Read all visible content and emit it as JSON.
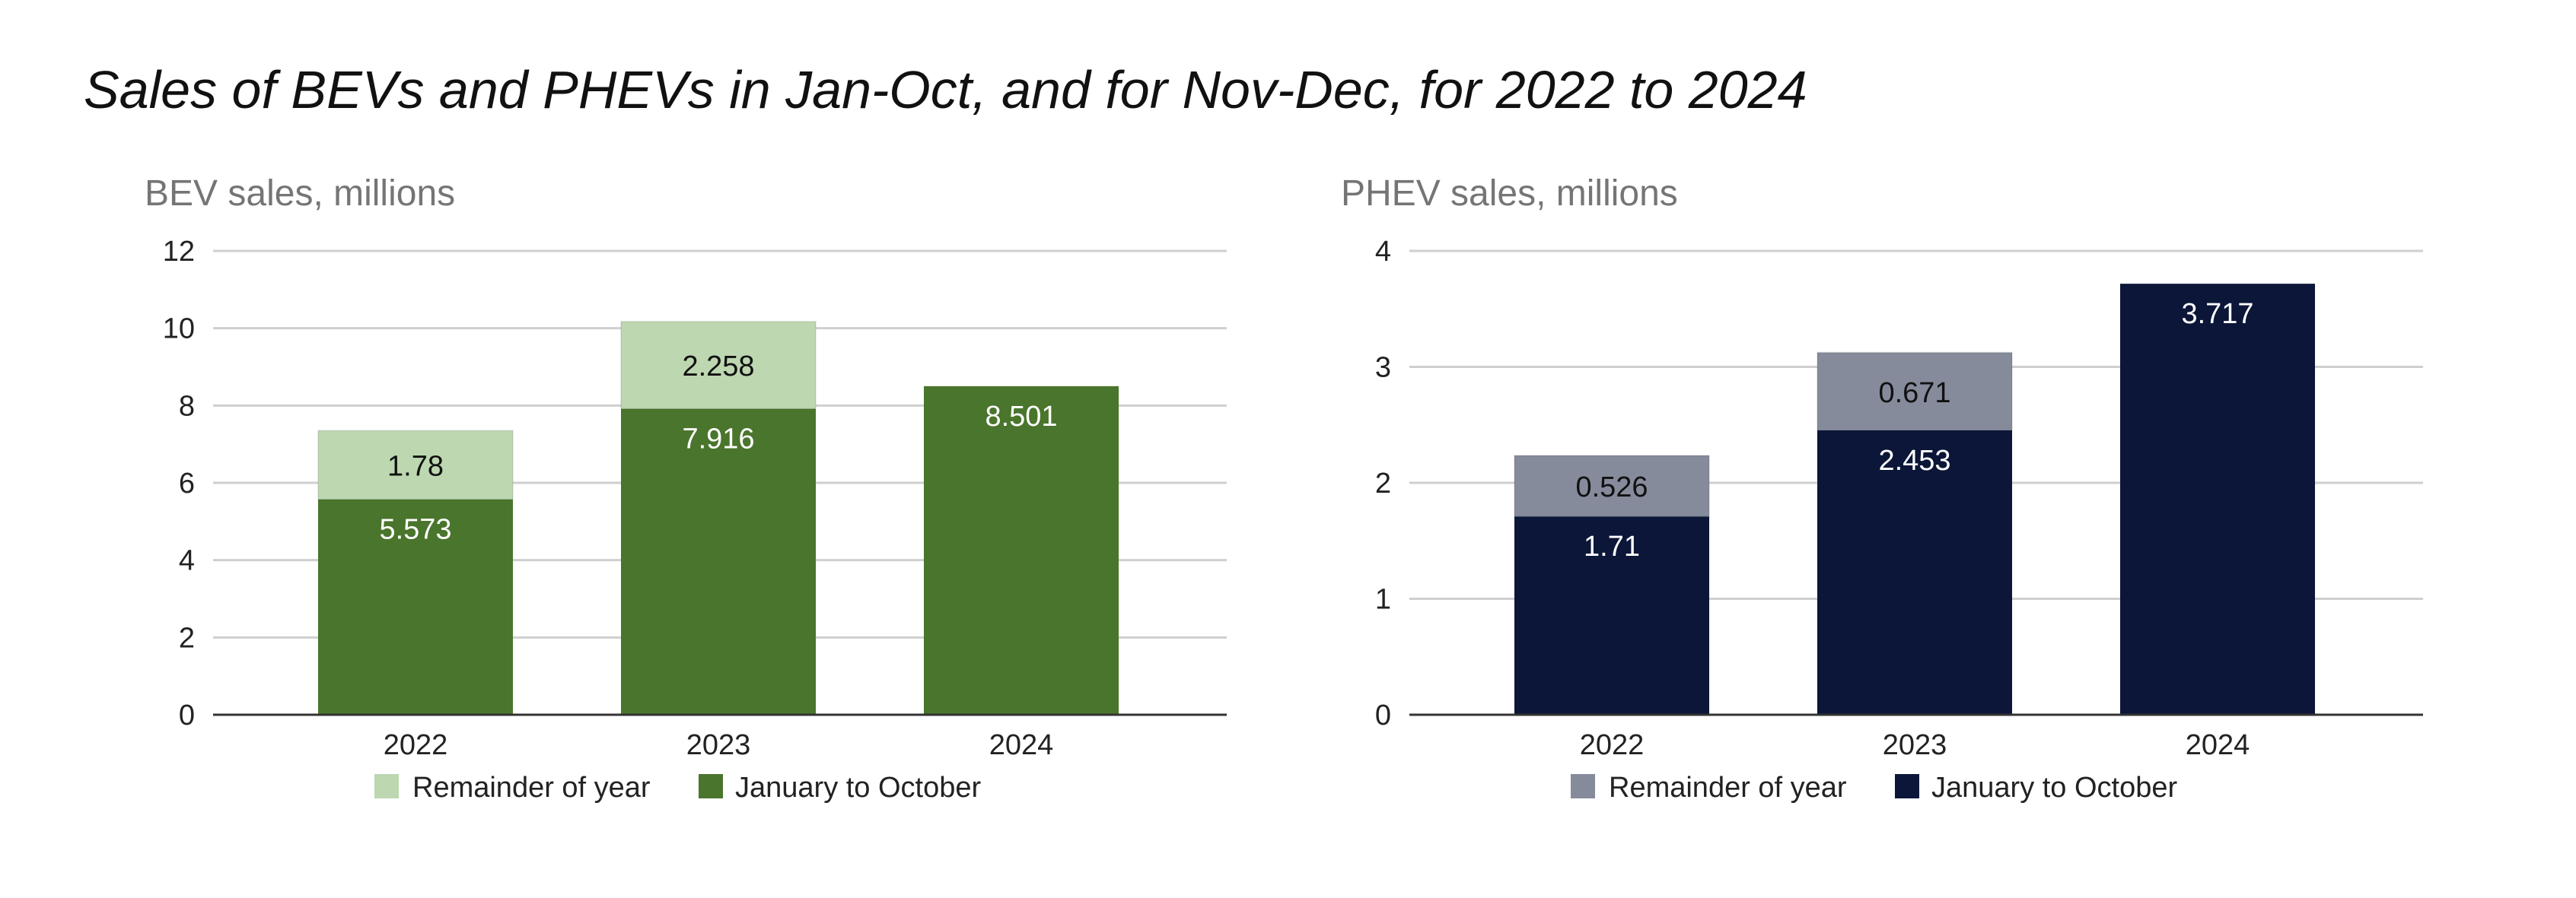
{
  "page": {
    "title": "Sales of BEVs and PHEVs in Jan-Oct, and for Nov-Dec, for 2022 to 2024"
  },
  "chart_data": [
    {
      "type": "bar",
      "stacked": true,
      "title": "BEV sales, millions",
      "categories": [
        "2022",
        "2023",
        "2024"
      ],
      "series": [
        {
          "name": "January to October",
          "values": [
            5.573,
            7.916,
            8.501
          ],
          "color": "#4a752c"
        },
        {
          "name": "Remainder of year",
          "values": [
            1.78,
            2.258,
            null
          ],
          "color": "#bdd7b0"
        }
      ],
      "legend": [
        "Remainder of year",
        "January to October"
      ],
      "legend_position": "bottom",
      "ylim": [
        0,
        12
      ],
      "yticks": [
        0,
        2,
        4,
        6,
        8,
        10,
        12
      ],
      "grid": true
    },
    {
      "type": "bar",
      "stacked": true,
      "title": "PHEV sales, millions",
      "categories": [
        "2022",
        "2023",
        "2024"
      ],
      "series": [
        {
          "name": "January to October",
          "values": [
            1.71,
            2.453,
            3.717
          ],
          "color": "#0b1638"
        },
        {
          "name": "Remainder of year",
          "values": [
            0.526,
            0.671,
            null
          ],
          "color": "#868b9c"
        }
      ],
      "legend": [
        "Remainder of year",
        "January to October"
      ],
      "legend_position": "bottom",
      "ylim": [
        0,
        4
      ],
      "yticks": [
        0,
        1,
        2,
        3,
        4
      ],
      "grid": true
    }
  ]
}
